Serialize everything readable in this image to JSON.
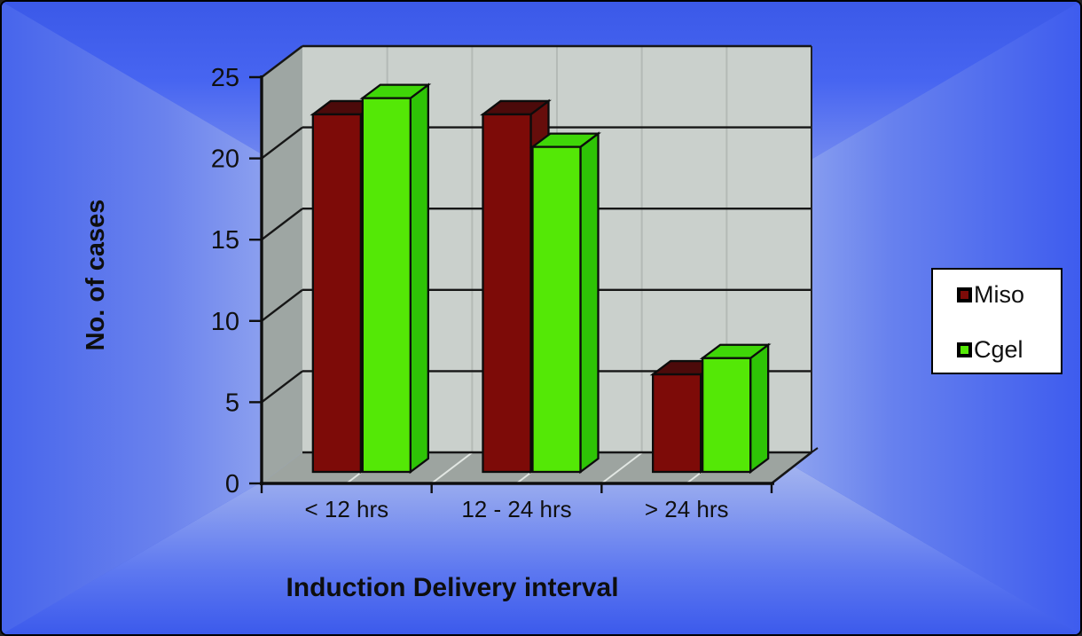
{
  "frame": {
    "background_outer_blue": "#3E5CEE",
    "background_center_light": "#F2F5E6",
    "border_color": "#000000"
  },
  "chart_data": {
    "type": "bar",
    "projection": "3d-column",
    "title": "",
    "xlabel": "Induction Delivery interval",
    "ylabel": "No. of cases",
    "categories": [
      "< 12 hrs",
      "12 - 24 hrs",
      "> 24 hrs"
    ],
    "series": [
      {
        "name": "Miso",
        "values": [
          22,
          22,
          6
        ],
        "color": "#7D0B08",
        "color_top": "#4C0A0A",
        "color_side": "#660D0B"
      },
      {
        "name": "Cgel",
        "values": [
          23,
          20,
          7
        ],
        "color": "#54E806",
        "color_top": "#3FD708",
        "color_side": "#2EC406"
      }
    ],
    "ylim": [
      0,
      25
    ],
    "ytick_step": 5,
    "yticks": [
      "0",
      "5",
      "10",
      "15",
      "20",
      "25"
    ],
    "grid": true,
    "legend_position": "right",
    "wall_color": "#CAD0CC",
    "side_wall_color": "#9EA6A3",
    "floor_color": "#9DA4A0",
    "gridline_color": "#161616",
    "wall_vertical_line_color": "#B4BAB6",
    "floor_line_color": "#E2E7E3",
    "axis_color": "#0E0E0E"
  }
}
